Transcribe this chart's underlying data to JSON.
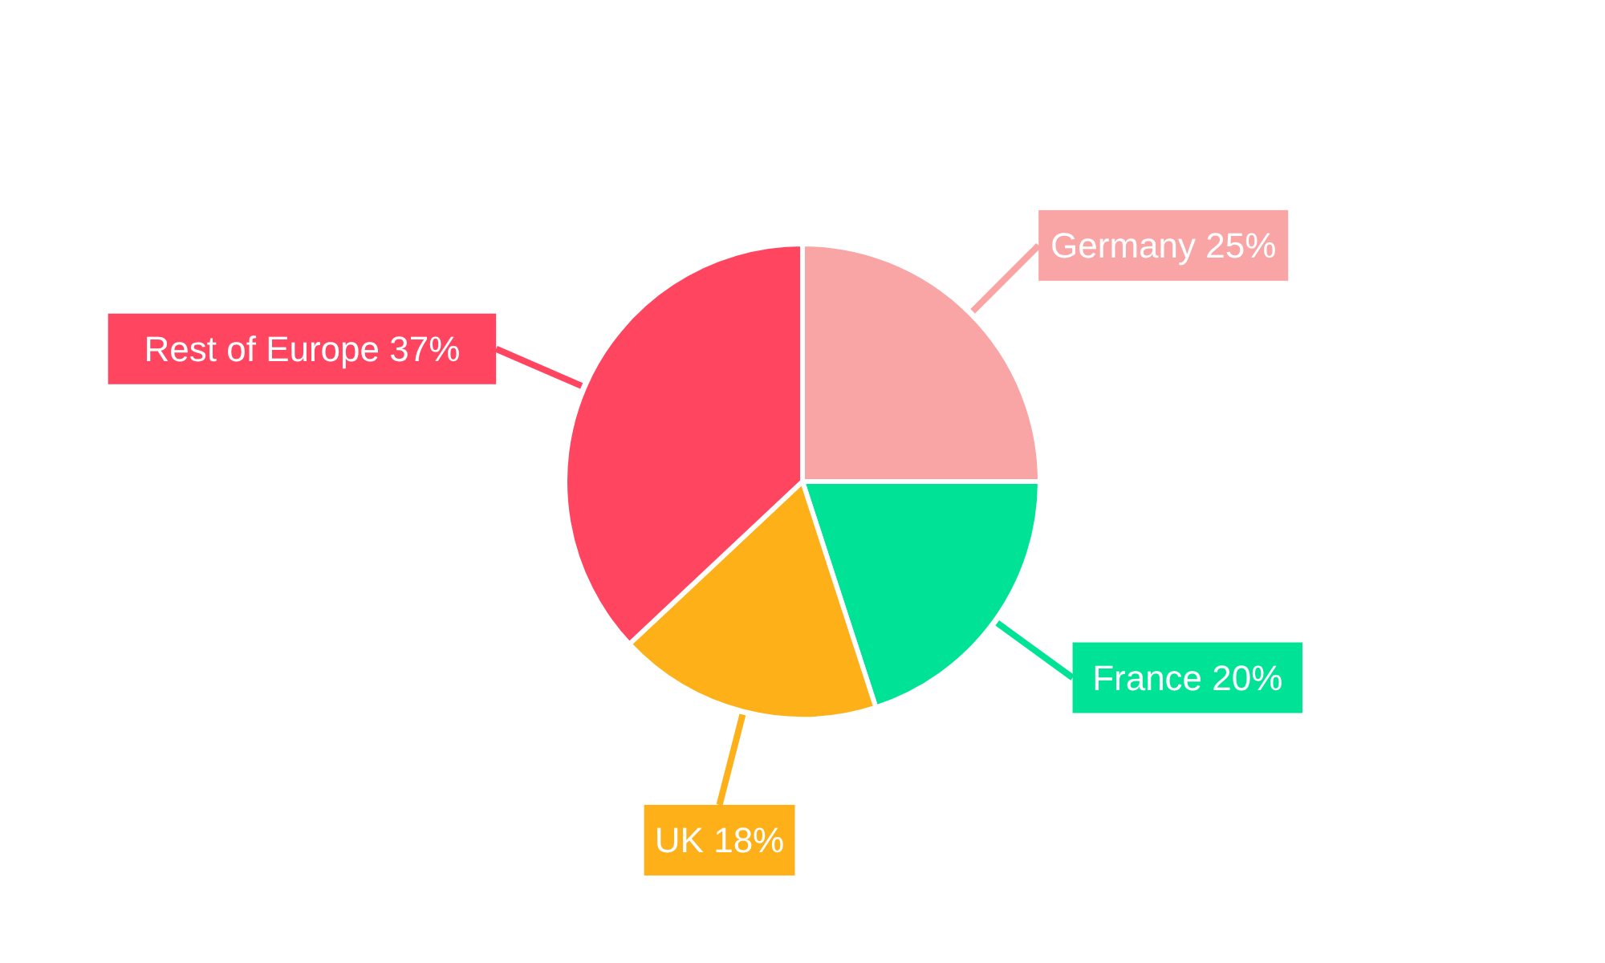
{
  "chart_data": {
    "type": "pie",
    "categories": [
      "Germany",
      "France",
      "UK",
      "Rest of Europe"
    ],
    "values": [
      25,
      20,
      18,
      37
    ],
    "value_labels": [
      "25%",
      "20%",
      "18%",
      "37%"
    ],
    "colors": [
      "#f9a4a5",
      "#00e396",
      "#feb019",
      "#ff4560"
    ]
  }
}
